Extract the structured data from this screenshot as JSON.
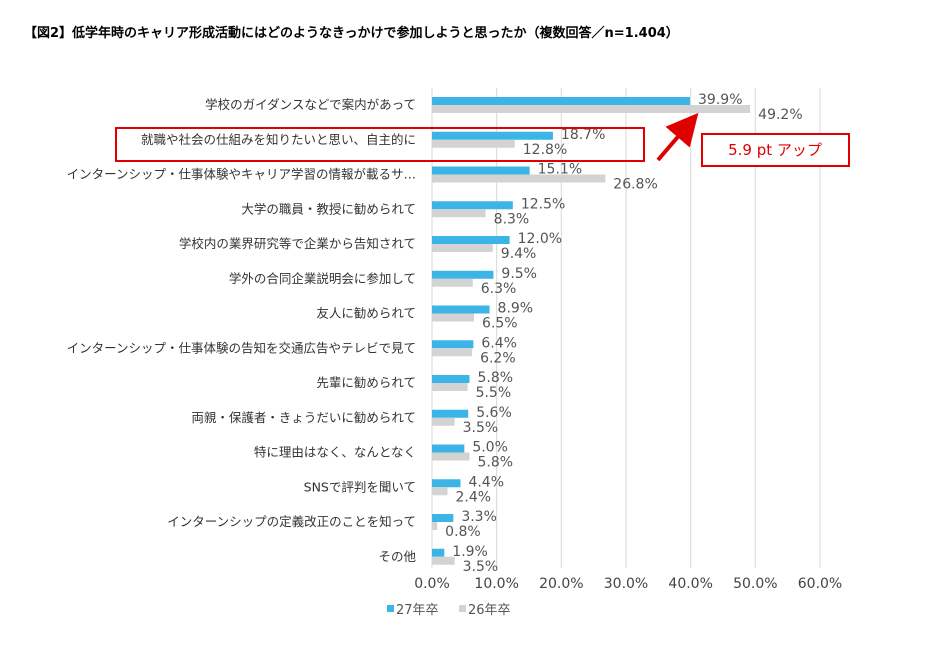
{
  "title": "【図2】低学年時のキャリア形成活動にはどのようなきっかけで参加しようと思ったか（複数回答／n=1.404）",
  "colors": {
    "series27": "#3db4e6",
    "series26": "#d3d3d3",
    "highlight": "#e00000",
    "grid": "#d9d9d9"
  },
  "annotation": {
    "text": "5.9 pt アップ"
  },
  "chart_data": {
    "type": "bar",
    "orientation": "horizontal",
    "categories": [
      "学校のガイダンスなどで案内があって",
      "就職や社会の仕組みを知りたいと思い、自主的に",
      "インターンシップ・仕事体験やキャリア学習の情報が載るサ…",
      "大学の職員・教授に勧められて",
      "学校内の業界研究等で企業から告知されて",
      "学外の合同企業説明会に参加して",
      "友人に勧められて",
      "インターンシップ・仕事体験の告知を交通広告やテレビで見て",
      "先輩に勧められて",
      "両親・保護者・きょうだいに勧められて",
      "特に理由はなく、なんとなく",
      "SNSで評判を聞いて",
      "インターンシップの定義改正のことを知って",
      "その他"
    ],
    "series": [
      {
        "name": "27年卒",
        "values": [
          39.9,
          18.7,
          15.1,
          12.5,
          12.0,
          9.5,
          8.9,
          6.4,
          5.8,
          5.6,
          5.0,
          4.4,
          3.3,
          1.9
        ]
      },
      {
        "name": "26年卒",
        "values": [
          49.2,
          12.8,
          26.8,
          8.3,
          9.4,
          6.3,
          6.5,
          6.2,
          5.5,
          3.5,
          5.8,
          2.4,
          0.8,
          3.5
        ]
      }
    ],
    "value_labels_27": [
      "39.9%",
      "18.7%",
      "15.1%",
      "12.5%",
      "12.0%",
      "9.5%",
      "8.9%",
      "6.4%",
      "5.8%",
      "5.6%",
      "5.0%",
      "4.4%",
      "3.3%",
      "1.9%"
    ],
    "value_labels_26": [
      "49.2%",
      "12.8%",
      "26.8%",
      "8.3%",
      "9.4%",
      "6.3%",
      "6.5%",
      "6.2%",
      "5.5%",
      "3.5%",
      "5.8%",
      "2.4%",
      "0.8%",
      "3.5%"
    ],
    "xlim": [
      0,
      60
    ],
    "xticks": [
      "0.0%",
      "10.0%",
      "20.0%",
      "30.0%",
      "40.0%",
      "50.0%",
      "60.0%"
    ],
    "grid": true,
    "legend_position": "bottom",
    "highlighted_category_index": 1
  }
}
